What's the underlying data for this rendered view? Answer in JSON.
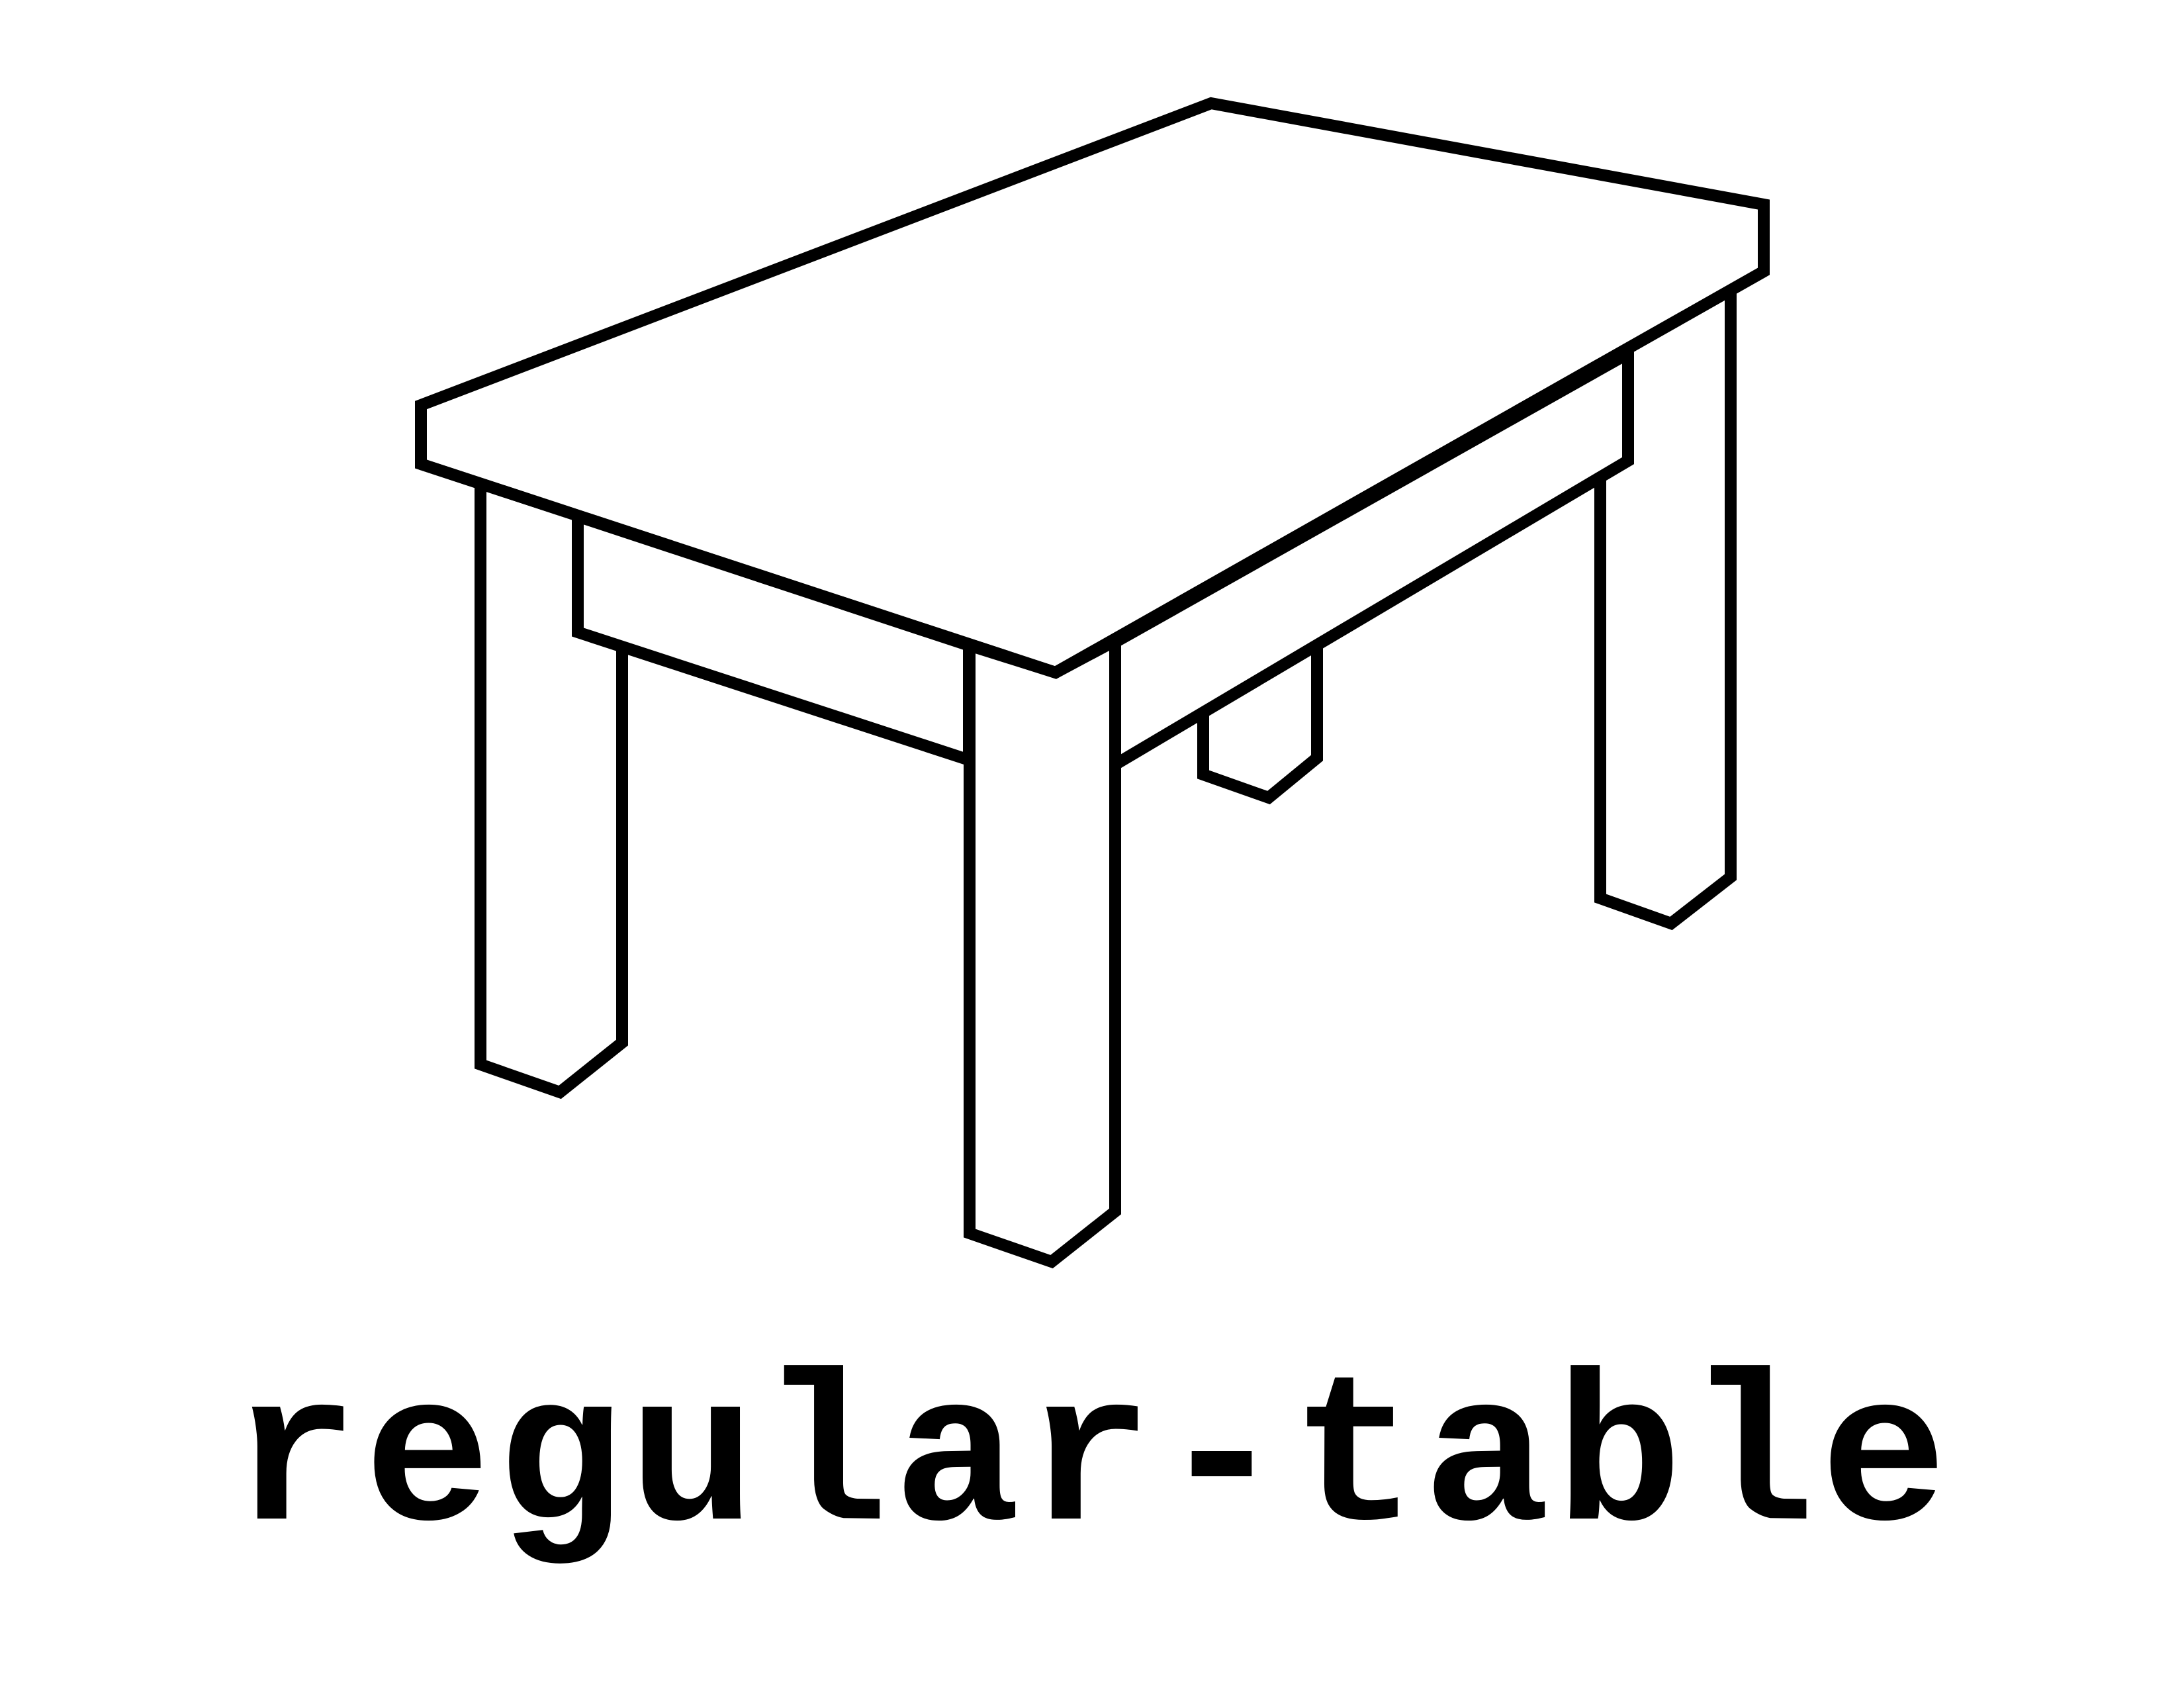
{
  "image": {
    "caption": "regular-table",
    "illustration_icon": "table-icon",
    "stroke_color": "#000000",
    "background_color": "#ffffff"
  }
}
